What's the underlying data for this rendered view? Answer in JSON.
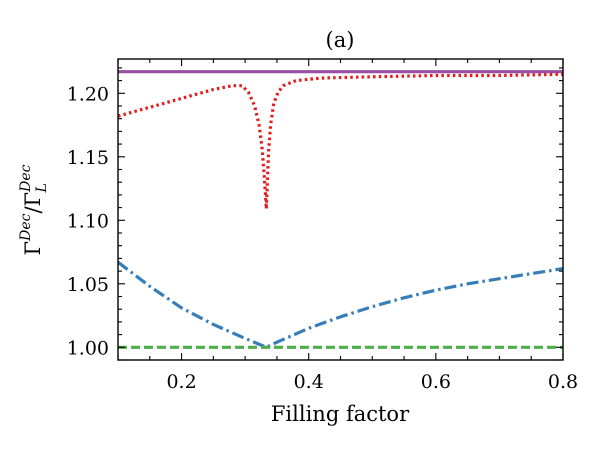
{
  "chart_data": {
    "type": "line",
    "title": "(a)",
    "xlabel": "Filling factor",
    "ylabel": {
      "base": "Γ",
      "numerator_superscript": "Dec",
      "slash": "/",
      "denominator_subscript": "L",
      "denominator_superscript": "Dec"
    },
    "xlim": [
      0.1,
      0.8
    ],
    "ylim": [
      0.99,
      1.227
    ],
    "xticks": [
      0.2,
      0.4,
      0.6,
      0.8
    ],
    "xtick_labels": [
      "0.2",
      "0.4",
      "0.6",
      "0.8"
    ],
    "yticks": [
      1.0,
      1.05,
      1.1,
      1.15,
      1.2
    ],
    "ytick_labels": [
      "1.00",
      "1.05",
      "1.10",
      "1.15",
      "1.20"
    ],
    "grid": false,
    "legend": null,
    "series": [
      {
        "name": "purple-solid",
        "color": "#984ea3",
        "style": "solid",
        "x": [
          0.1,
          0.8
        ],
        "y": [
          1.217,
          1.217
        ]
      },
      {
        "name": "red-dotted",
        "color": "#e41a1c",
        "style": "dotted",
        "x": [
          0.1,
          0.15,
          0.2,
          0.25,
          0.28,
          0.295,
          0.305,
          0.315,
          0.322,
          0.327,
          0.33,
          0.332,
          0.3333,
          0.335,
          0.337,
          0.34,
          0.345,
          0.352,
          0.36,
          0.38,
          0.42,
          0.5,
          0.6,
          0.7,
          0.8
        ],
        "y": [
          1.182,
          1.189,
          1.196,
          1.203,
          1.206,
          1.206,
          1.201,
          1.19,
          1.175,
          1.155,
          1.135,
          1.12,
          1.109,
          1.13,
          1.155,
          1.175,
          1.192,
          1.201,
          1.206,
          1.21,
          1.212,
          1.213,
          1.214,
          1.214,
          1.215
        ]
      },
      {
        "name": "blue-dashdot",
        "color": "#377eb8",
        "style": "dashdot",
        "x": [
          0.1,
          0.15,
          0.2,
          0.25,
          0.3,
          0.3333,
          0.35,
          0.4,
          0.45,
          0.5,
          0.55,
          0.6,
          0.65,
          0.7,
          0.75,
          0.8
        ],
        "y": [
          1.067,
          1.048,
          1.031,
          1.018,
          1.007,
          1.0,
          1.004,
          1.015,
          1.024,
          1.032,
          1.039,
          1.045,
          1.05,
          1.054,
          1.058,
          1.062
        ]
      },
      {
        "name": "green-dashed",
        "color": "#4daf4a",
        "style": "dashed",
        "x": [
          0.1,
          0.8
        ],
        "y": [
          1.0,
          1.0
        ]
      }
    ]
  }
}
